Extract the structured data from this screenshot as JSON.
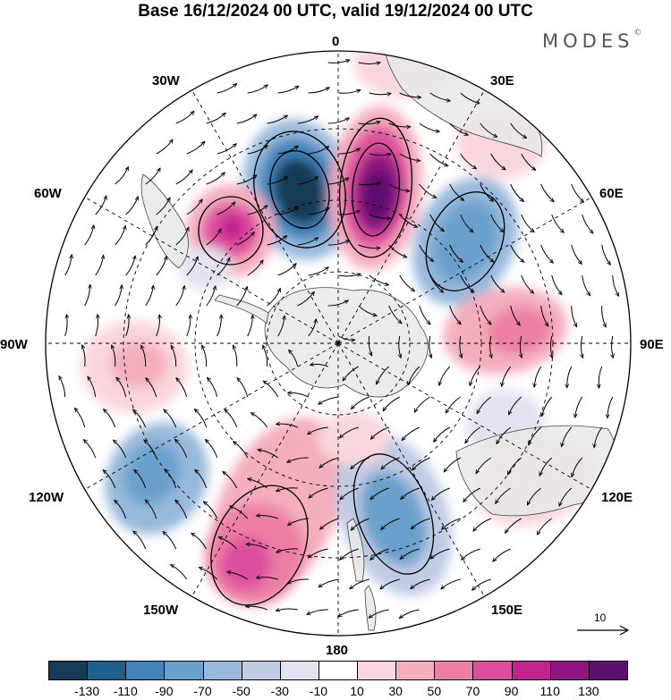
{
  "title": "Base 16/12/2024 00 UTC, valid 19/12/2024 00 UTC",
  "brand": "MODES",
  "brand_mark": "©",
  "longitude_labels": {
    "lon_0": "0",
    "lon_30e": "30E",
    "lon_60e": "60E",
    "lon_90e": "90E",
    "lon_120e": "120E",
    "lon_150e": "150E",
    "lon_180": "180",
    "lon_150w": "150W",
    "lon_120w": "120W",
    "lon_90w": "90W",
    "lon_60w": "60W",
    "lon_30w": "30W"
  },
  "reference_vector": {
    "label": "10"
  },
  "colorbar": {
    "colors": [
      "#173b57",
      "#1f5f8b",
      "#3f83b8",
      "#6aa1cc",
      "#98b9db",
      "#c0cbe4",
      "#e3e3f0",
      "#ffffff",
      "#f9d6dc",
      "#f4aebe",
      "#ec7fa5",
      "#dd4f9e",
      "#c2238f",
      "#8e157f",
      "#5c116f"
    ],
    "ticks": [
      "-130",
      "-110",
      "-90",
      "-70",
      "-50",
      "-30",
      "-10",
      "10",
      "30",
      "50",
      "70",
      "90",
      "110",
      "130"
    ]
  },
  "map": {
    "projection": "south polar stereographic",
    "land_color": "#e8e8e8",
    "grid_style": "dashed"
  }
}
